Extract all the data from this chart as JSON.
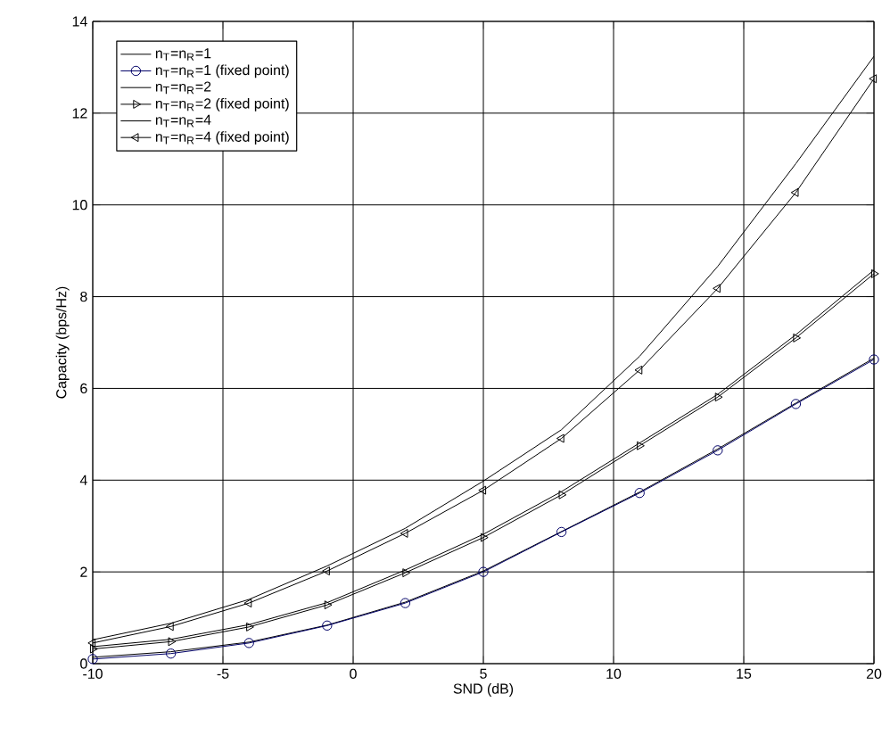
{
  "chart_data": {
    "type": "line",
    "xlabel": "SND (dB)",
    "ylabel": "Capacity (bps/Hz)",
    "x": [
      -10,
      -7,
      -4,
      -1,
      2,
      5,
      8,
      11,
      14,
      17,
      20
    ],
    "xlim": [
      -10,
      20
    ],
    "xticks": [
      -10,
      -5,
      0,
      5,
      10,
      15,
      20
    ],
    "ylim": [
      0,
      14
    ],
    "yticks": [
      0,
      2,
      4,
      6,
      8,
      10,
      12,
      14
    ],
    "grid": true,
    "legend": "top left",
    "line_style": "solid",
    "series": [
      {
        "name": "n$_{T}$=n$_{R}$=1",
        "color": "#000000",
        "marker": "none",
        "values": [
          0.14,
          0.26,
          0.47,
          0.84,
          1.34,
          2.02,
          2.88,
          3.74,
          4.68,
          5.68,
          6.66
        ]
      },
      {
        "name": "n$_{T}$=n$_{R}$=1 (fixed point)",
        "color": "#000066",
        "marker": "circle",
        "values": [
          0.1,
          0.22,
          0.45,
          0.83,
          1.32,
          2.0,
          2.87,
          3.72,
          4.65,
          5.66,
          6.63
        ]
      },
      {
        "name": "n$_{T}$=n$_{R}$=2",
        "color": "#000000",
        "marker": "none",
        "values": [
          0.37,
          0.53,
          0.85,
          1.33,
          2.04,
          2.82,
          3.75,
          4.81,
          5.87,
          7.17,
          8.58
        ]
      },
      {
        "name": "n$_{T}$=n$_{R}$=2 (fixed point)",
        "color": "#000000",
        "marker": "triangle-right",
        "values": [
          0.32,
          0.48,
          0.8,
          1.28,
          1.98,
          2.75,
          3.68,
          4.75,
          5.81,
          7.1,
          8.5
        ]
      },
      {
        "name": "n$_{T}$=n$_{R}$=4",
        "color": "#000000",
        "marker": "none",
        "values": [
          0.52,
          0.88,
          1.4,
          2.13,
          2.95,
          3.98,
          5.1,
          6.7,
          8.66,
          10.9,
          13.24
        ]
      },
      {
        "name": "n$_{T}$=n$_{R}$=4 (fixed point)",
        "color": "#000000",
        "marker": "triangle-left",
        "values": [
          0.45,
          0.81,
          1.32,
          2.02,
          2.84,
          3.78,
          4.91,
          6.4,
          8.18,
          10.27,
          12.75
        ]
      }
    ]
  }
}
